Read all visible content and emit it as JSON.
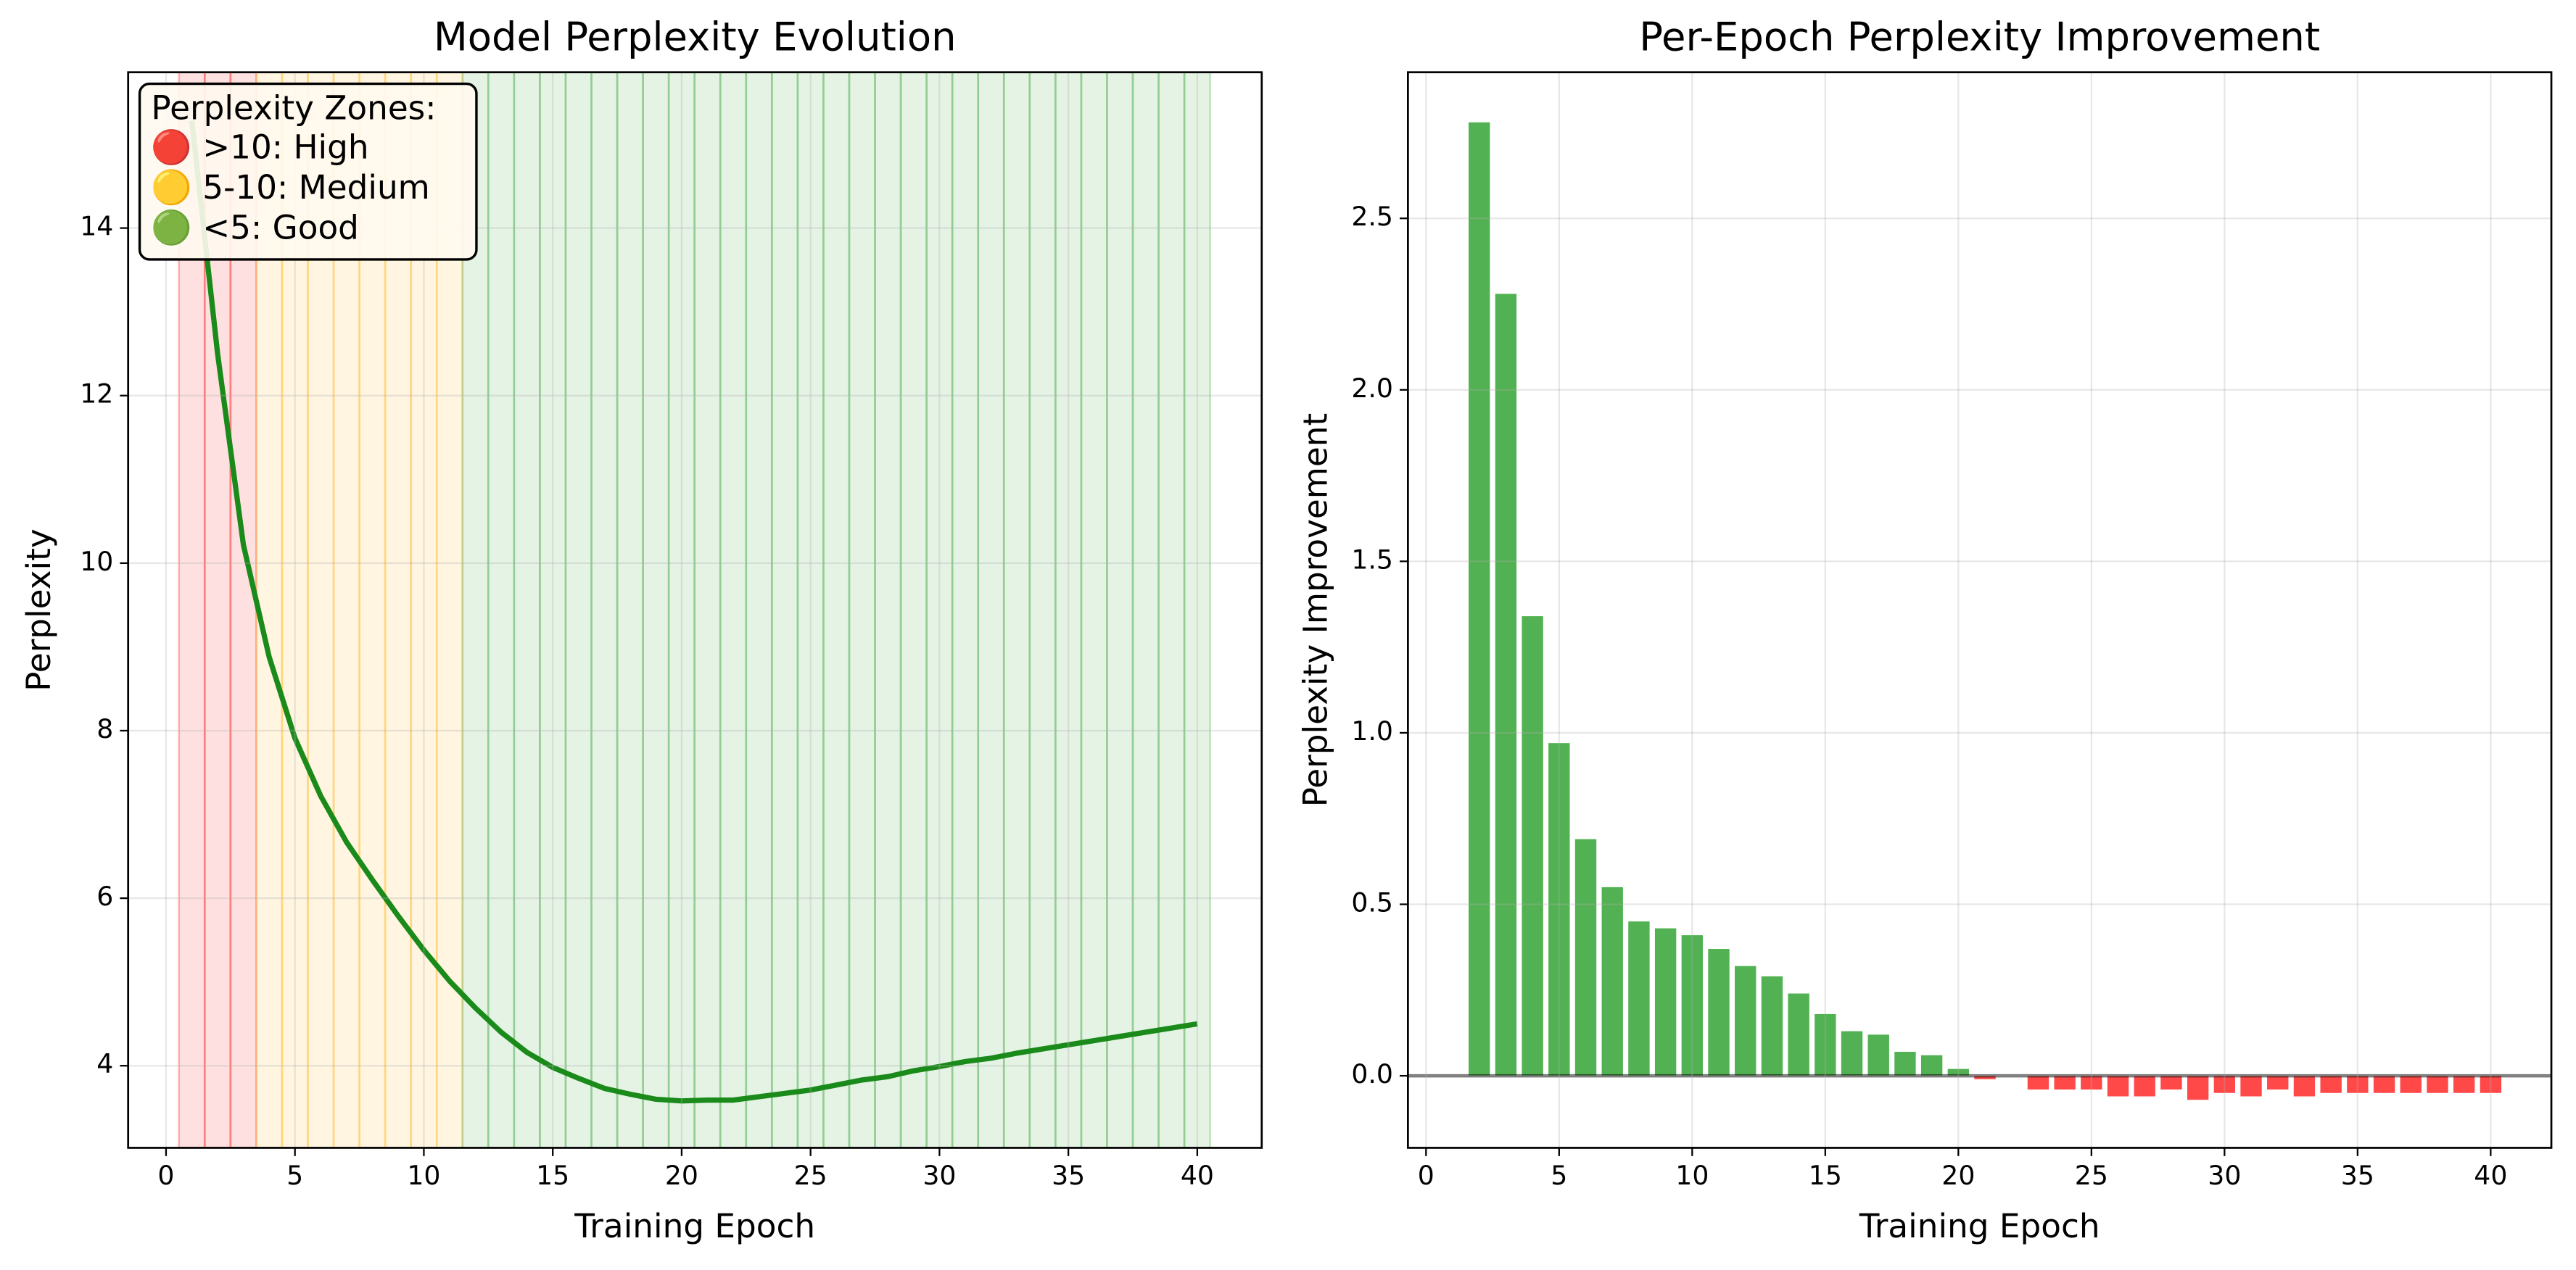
{
  "chart_data": [
    {
      "type": "line",
      "title": "Model Perplexity Evolution",
      "xlabel": "Training Epoch",
      "ylabel": "Perplexity",
      "x": [
        1,
        2,
        3,
        4,
        5,
        6,
        7,
        8,
        9,
        10,
        11,
        12,
        13,
        14,
        15,
        16,
        17,
        18,
        19,
        20,
        21,
        22,
        23,
        24,
        25,
        26,
        27,
        28,
        29,
        30,
        31,
        32,
        33,
        34,
        35,
        36,
        37,
        38,
        39,
        40
      ],
      "series": [
        {
          "color": "#1a8a1a",
          "values": [
            15.28,
            12.5,
            10.22,
            8.88,
            7.91,
            7.22,
            6.67,
            6.22,
            5.79,
            5.38,
            5.01,
            4.69,
            4.4,
            4.16,
            3.98,
            3.85,
            3.73,
            3.66,
            3.6,
            3.58,
            3.59,
            3.59,
            3.63,
            3.67,
            3.71,
            3.77,
            3.83,
            3.87,
            3.94,
            3.99,
            4.05,
            4.09,
            4.15,
            4.2,
            4.25,
            4.3,
            4.35,
            4.4,
            4.45,
            4.5
          ]
        }
      ],
      "legend_title": "Perplexity Zones:",
      "zones": [
        {
          "label": "🔴 >10: High",
          "above": 10,
          "color": "#ff0000"
        },
        {
          "label": "🟡 5-10: Medium",
          "above": 5,
          "color": "#ffb000"
        },
        {
          "label": "🟢 <5: Good",
          "above": 0,
          "color": "#2ca02c"
        }
      ],
      "xlim": [
        -1.47,
        42.5
      ],
      "ylim": [
        3.02,
        15.86
      ],
      "xticks": [
        0,
        5,
        10,
        15,
        20,
        25,
        30,
        35,
        40
      ],
      "yticks": [
        4,
        6,
        8,
        10,
        12,
        14
      ],
      "grid": true
    },
    {
      "type": "bar",
      "title": "Per-Epoch Perplexity Improvement",
      "xlabel": "Training Epoch",
      "ylabel": "Perplexity Improvement",
      "x": [
        2,
        3,
        4,
        5,
        6,
        7,
        8,
        9,
        10,
        11,
        12,
        13,
        14,
        15,
        16,
        17,
        18,
        19,
        20,
        21,
        22,
        23,
        24,
        25,
        26,
        27,
        28,
        29,
        30,
        31,
        32,
        33,
        34,
        35,
        36,
        37,
        38,
        39,
        40
      ],
      "values": [
        2.78,
        2.28,
        1.34,
        0.97,
        0.69,
        0.55,
        0.45,
        0.43,
        0.41,
        0.37,
        0.32,
        0.29,
        0.24,
        0.18,
        0.13,
        0.12,
        0.07,
        0.06,
        0.02,
        -0.01,
        0,
        -0.04,
        -0.04,
        -0.04,
        -0.06,
        -0.06,
        -0.04,
        -0.07,
        -0.05,
        -0.06,
        -0.04,
        -0.06,
        -0.05,
        -0.05,
        -0.05,
        -0.05,
        -0.05,
        -0.05,
        -0.05
      ],
      "positive_color": "#2ca02c",
      "negative_color": "#ff2020",
      "zero_line": true,
      "xlim": [
        -0.68,
        42.28
      ],
      "ylim": [
        -0.21,
        2.926
      ],
      "xticks": [
        0,
        5,
        10,
        15,
        20,
        25,
        30,
        35,
        40
      ],
      "yticks": [
        {
          "value": 0,
          "label": "0.0"
        },
        0.5,
        {
          "value": 1,
          "label": "1.0"
        },
        1.5,
        {
          "value": 2,
          "label": "2.0"
        },
        2.5
      ],
      "grid": true
    }
  ]
}
